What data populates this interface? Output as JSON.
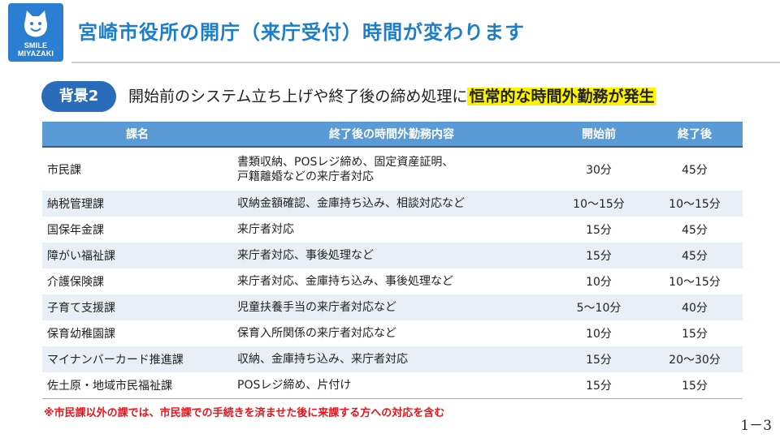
{
  "logo": {
    "line1": "SMILE",
    "line2": "MIYAZAKI",
    "icon": "smiling-cat-mascot-icon"
  },
  "title": "宮崎市役所の開庁（来庁受付）時間が変わります",
  "section": {
    "badge": "背景2",
    "text": "開始前のシステム立ち上げや終了後の締め処理に",
    "highlight": "恒常的な時間外勤務が発生"
  },
  "table": {
    "headers": [
      "課名",
      "終了後の時間外勤務内容",
      "開始前",
      "終了後"
    ],
    "rows": [
      {
        "name": "市民課",
        "work": "書類収納、POSレジ締め、固定資産証明、",
        "work2": "戸籍離婚などの来庁者対応",
        "before": "30分",
        "after": "45分"
      },
      {
        "name": "納税管理課",
        "work": "収納金額確認、金庫持ち込み、相談対応など",
        "before": "10～15分",
        "after": "10～15分"
      },
      {
        "name": "国保年金課",
        "work": "来庁者対応",
        "before": "15分",
        "after": "45分"
      },
      {
        "name": "障がい福祉課",
        "work": "来庁者対応、事後処理など",
        "before": "15分",
        "after": "45分"
      },
      {
        "name": "介護保険課",
        "work": "来庁者対応、金庫持ち込み、事後処理など",
        "before": "10分",
        "after": "10～15分"
      },
      {
        "name": "子育て支援課",
        "work": "児童扶養手当の来庁者対応など",
        "before": "5～10分",
        "after": "40分"
      },
      {
        "name": "保育幼稚園課",
        "work": "保育入所関係の来庁者対応など",
        "before": "10分",
        "after": "15分"
      },
      {
        "name": "マイナンバーカード推進課",
        "work": "収納、金庫持ち込み、来庁者対応",
        "before": "15分",
        "after": "20～30分"
      },
      {
        "name": "佐土原・地域市民福祉課",
        "work": "POSレジ締め、片付け",
        "before": "15分",
        "after": "15分"
      }
    ]
  },
  "note": "※市民課以外の課では、市民課での手続きを済ませた後に来課する方への対応を含む",
  "page_number": "1－3",
  "colors": {
    "title": "#1e7dc8",
    "badge": "#2a6cba",
    "table_header": "#5b9bd5",
    "row_band": "#e9eff7",
    "highlight": "#fff400",
    "note": "#e8141c"
  }
}
